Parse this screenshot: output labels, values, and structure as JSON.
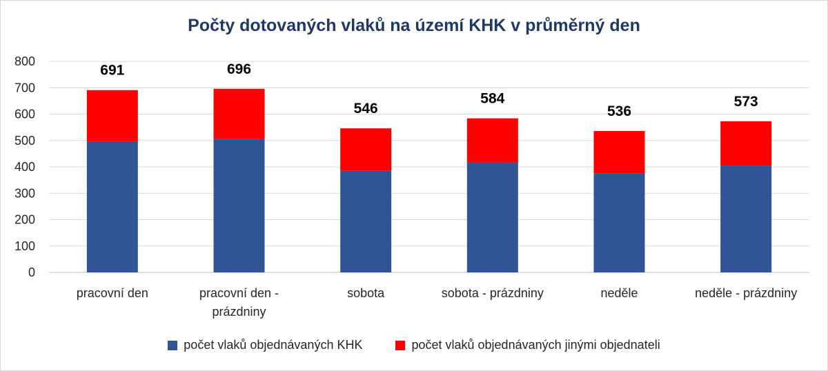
{
  "chart_data": {
    "type": "bar",
    "stacked": true,
    "title": "Počty dotovaných vlaků na území KHK v průměrný den",
    "categories": [
      [
        "pracovní den"
      ],
      [
        "pracovní den -",
        "prázdniny"
      ],
      [
        "sobota"
      ],
      [
        "sobota - prázdniny"
      ],
      [
        "neděle"
      ],
      [
        "neděle - prázdniny"
      ]
    ],
    "series": [
      {
        "name": "počet vlaků objednávaných KHK",
        "color": "#2f5597",
        "values": [
          497,
          505,
          385,
          416,
          376,
          405
        ]
      },
      {
        "name": "počet vlaků objednávaných jinými objednateli",
        "color": "#ff0000",
        "values": [
          194,
          191,
          161,
          168,
          160,
          168
        ]
      }
    ],
    "totals": [
      691,
      696,
      546,
      584,
      536,
      573
    ],
    "ylim": [
      0,
      800
    ],
    "yticks": [
      0,
      100,
      200,
      300,
      400,
      500,
      600,
      700,
      800
    ],
    "grid": true,
    "legend_position": "bottom"
  }
}
